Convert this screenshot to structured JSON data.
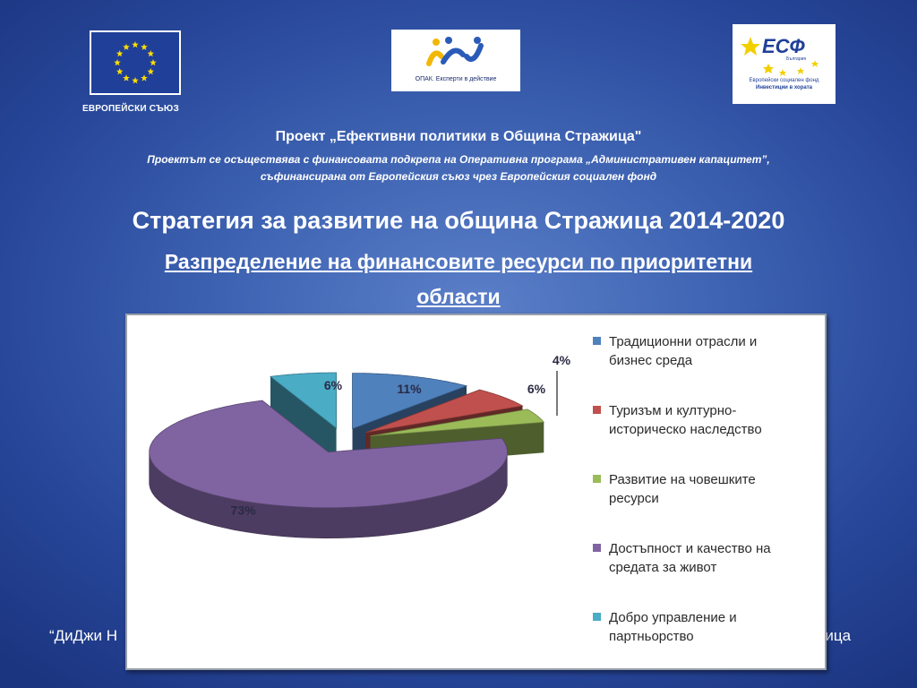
{
  "logos": {
    "eu_caption": "ЕВРОПЕЙСКИ СЪЮЗ",
    "opak_caption": "ОПАК. Експерти в действие",
    "esf_word": "ЕСФ",
    "esf_country": "България",
    "esf_line1": "Европейски социален фонд",
    "esf_line2": "Инвестиции в хората"
  },
  "header": {
    "project_title": "Проект „Ефективни политики в Община Стражица\"",
    "project_sub_1": "Проектът се осъществява с финансовата подкрепа на Оперативна програма „Административен капацитет”,",
    "project_sub_2": "съфинансирана от Европейския съюз чрез Европейския социален фонд"
  },
  "main": {
    "title": "Стратегия за развитие на община Стражица 2014-2020",
    "subtitle_1": "Разпределение на финансовите ресурси по приоритетни",
    "subtitle_2": "области"
  },
  "footer": {
    "left": "“ДиДжи Н",
    "right": "жица"
  },
  "chart_data": {
    "type": "pie",
    "style": "3d-exploded",
    "legend_position": "right",
    "categories": [
      "Традиционни отрасли и бизнес среда",
      "Туризъм и културно-историческо наследство",
      "Развитие на човешките ресурси",
      "Достъпност и качество на средата за живот",
      "Добро управление и партньорство"
    ],
    "values": [
      11,
      6,
      4,
      73,
      6
    ],
    "labels": [
      "11%",
      "6%",
      "4%",
      "73%",
      "6%"
    ],
    "legend_lines": [
      [
        "Традиционни отрасли и",
        "бизнес среда"
      ],
      [
        "Туризъм и културно-",
        "историческо наследство"
      ],
      [
        "Развитие на човешките",
        "ресурси"
      ],
      [
        "Достъпност и качество на",
        "средата за живот"
      ],
      [
        "Добро управление и",
        "партньорство"
      ]
    ],
    "colors": [
      "#4f81bd",
      "#c0504d",
      "#9bbb59",
      "#8064a2",
      "#4bacc6"
    ]
  }
}
